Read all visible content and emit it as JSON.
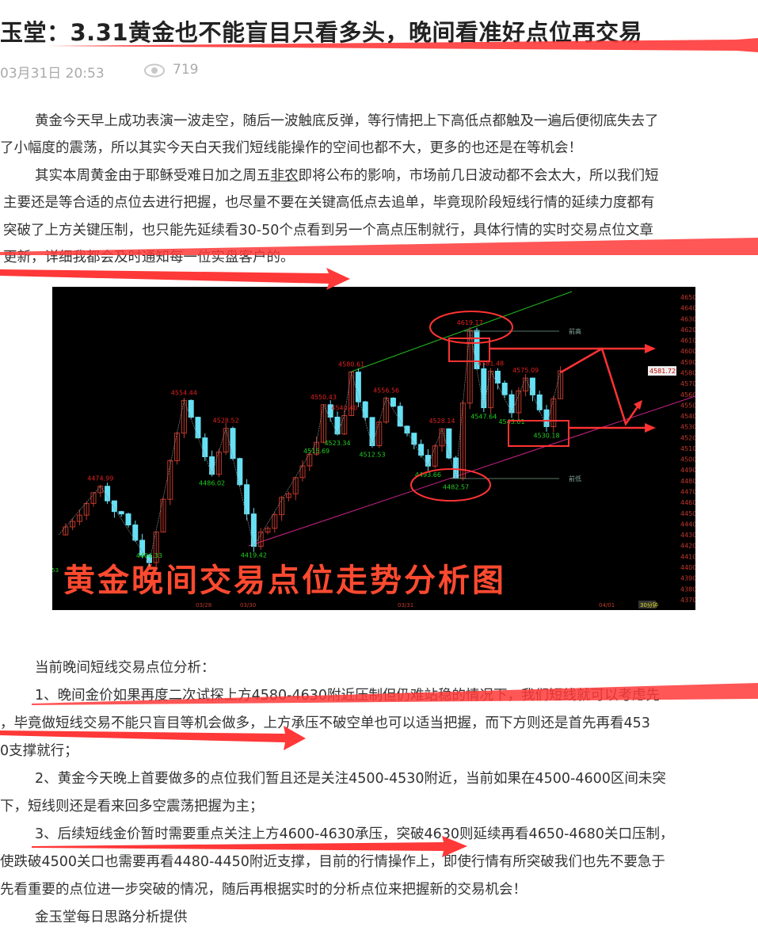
{
  "article": {
    "title": "玉堂：3.31黄金也不能盲目只看多头，晚间看准好点位再交易",
    "date": "03月31日 20:53",
    "views_icon": "eye-icon",
    "views": "719",
    "paragraph1": [
      "黄金今天早上成功表演一波走空，随后一波触底反弹，等行情把上下高低点都触及一遍后便彻底失去了",
      "了小幅度的震荡，所以其实今天白天我们短线能操作的空间也都不大，更多的也还是在等机会！"
    ],
    "paragraph2": {
      "line1_pre": "其实本周黄金由于耶稣受难日加之周五",
      "line1_link": "非农",
      "line1_post": "即将公布的影响，市场前几日波动都不会太大，所以我们短",
      "lines": [
        "主要还是等合适的点位去进行把握，也尽量不要在关键高低点去追单，毕竟现阶段短线行情的延续力度都有",
        "突破了上方关键压制，也只能先延续看30-50个点看到另一个高点压制就行，具体行情的实时交易点位文章",
        "更新，详细我都会及时通知每一位实盘客户的。"
      ]
    },
    "analysis_heading": "当前晚间短线交易点位分析：",
    "analysis_lines": [
      "1、晚间金价如果再度二次试探上方4580-4630附近压制但仍难站稳的情况下，我们短线就可以考虑先",
      "，毕竟做短线交易不能只盲目等机会做多，上方承压不破空单也可以适当把握，而下方则还是首先再看453",
      "0支撑就行；",
      "2、黄金今天晚上首要做多的点位我们暂且还是关注4500-4530附近，当前如果在4500-4600区间未突",
      "下，短线则还是看来回多空震荡把握为主；",
      "3、后续短线金价暂时需要重点关注上方4600-4630承压，突破4630则延续再看4650-4680关口压制，",
      "使跌破4500关口也需要再看4480-4450附近支撑，目前的行情操作上，即使行情有所突破我们也先不要急于",
      "先看重要的点位进一步突破的情况，随后再根据实时的分析点位来把握新的交易机会！"
    ],
    "signature": "金玉堂每日思路分析提供"
  },
  "colors": {
    "annotation_red": "#ff3333",
    "up_candle": "#c0392b",
    "down_candle": "#66e0f5",
    "high_label": "#e02020",
    "low_label": "#22cc22"
  },
  "chart_data": {
    "type": "candlestick",
    "title": "黄金晚间交易点位走势分析图",
    "yticks": [
      "4650.00",
      "4640.00",
      "4630.00",
      "4620.00",
      "4610.00",
      "4600.00",
      "4590.00",
      "4580.00",
      "4570.00",
      "4560.00",
      "4550.00",
      "4540.00",
      "4530.00",
      "4520.00",
      "4510.00",
      "4500.00",
      "4490.00",
      "4480.00",
      "4470.00",
      "4460.00",
      "4450.00",
      "4440.00",
      "4430.00",
      "4420.00",
      "4410.00",
      "4400.00",
      "4390.00",
      "4380.00",
      "4370.00"
    ],
    "ylim": [
      4370,
      4650
    ],
    "current_price": "4581.72",
    "timeframe": "30分钟",
    "date_labels": [
      "03/28",
      "03/30",
      "03/31",
      "04/01"
    ],
    "pivots": [
      {
        "bar": 0,
        "price": 4430
      },
      {
        "bar": 6,
        "price": 4474.99,
        "label": "4474.99",
        "kind": "high"
      },
      {
        "bar": 13,
        "price": 4404.33,
        "label": "4404.33",
        "kind": "low"
      },
      {
        "bar": 18,
        "price": 4554.44,
        "label": "4554.44",
        "kind": "high"
      },
      {
        "bar": 22,
        "price": 4486.02,
        "label": "4486.02",
        "kind": "low"
      },
      {
        "bar": 24,
        "price": 4528.52,
        "label": "4528.52",
        "kind": "high"
      },
      {
        "bar": 28,
        "price": 4419.42,
        "label": "4419.42",
        "kind": "low"
      },
      {
        "bar": 37,
        "price": 4515.69,
        "label": "4515.69",
        "kind": "low"
      },
      {
        "bar": 38,
        "price": 4550.43,
        "label": "4550.43",
        "kind": "high"
      },
      {
        "bar": 40,
        "price": 4523.34,
        "label": "4523.34",
        "kind": "low"
      },
      {
        "bar": 41,
        "price": 4540.4,
        "label": "4540.40",
        "kind": "high"
      },
      {
        "bar": 42,
        "price": 4580.61,
        "label": "4580.61",
        "kind": "high"
      },
      {
        "bar": 45,
        "price": 4512.53,
        "label": "4512.53",
        "kind": "low"
      },
      {
        "bar": 47,
        "price": 4556.56,
        "label": "4556.56",
        "kind": "high"
      },
      {
        "bar": 53,
        "price": 4493.66,
        "label": "4493.66",
        "kind": "low"
      },
      {
        "bar": 55,
        "price": 4528.14,
        "label": "4528.14",
        "kind": "high"
      },
      {
        "bar": 57,
        "price": 4482.57,
        "label": "4482.57",
        "kind": "low"
      },
      {
        "bar": 59,
        "price": 4619.17,
        "label": "4619.17",
        "kind": "high"
      },
      {
        "bar": 61,
        "price": 4547.64,
        "label": "4547.64",
        "kind": "low"
      },
      {
        "bar": 62,
        "price": 4581.48,
        "label": "4581.48",
        "kind": "high"
      },
      {
        "bar": 65,
        "price": 4543.01,
        "label": "4543.01",
        "kind": "low"
      },
      {
        "bar": 67,
        "price": 4575.09,
        "label": "4575.09",
        "kind": "high"
      },
      {
        "bar": 70,
        "price": 4530.18,
        "label": "4530.18",
        "kind": "low"
      },
      {
        "bar": 72,
        "price": 4581.72
      }
    ],
    "prev_high_label": "前高",
    "prev_low_label": "前低",
    "corner_label": "77.53"
  }
}
